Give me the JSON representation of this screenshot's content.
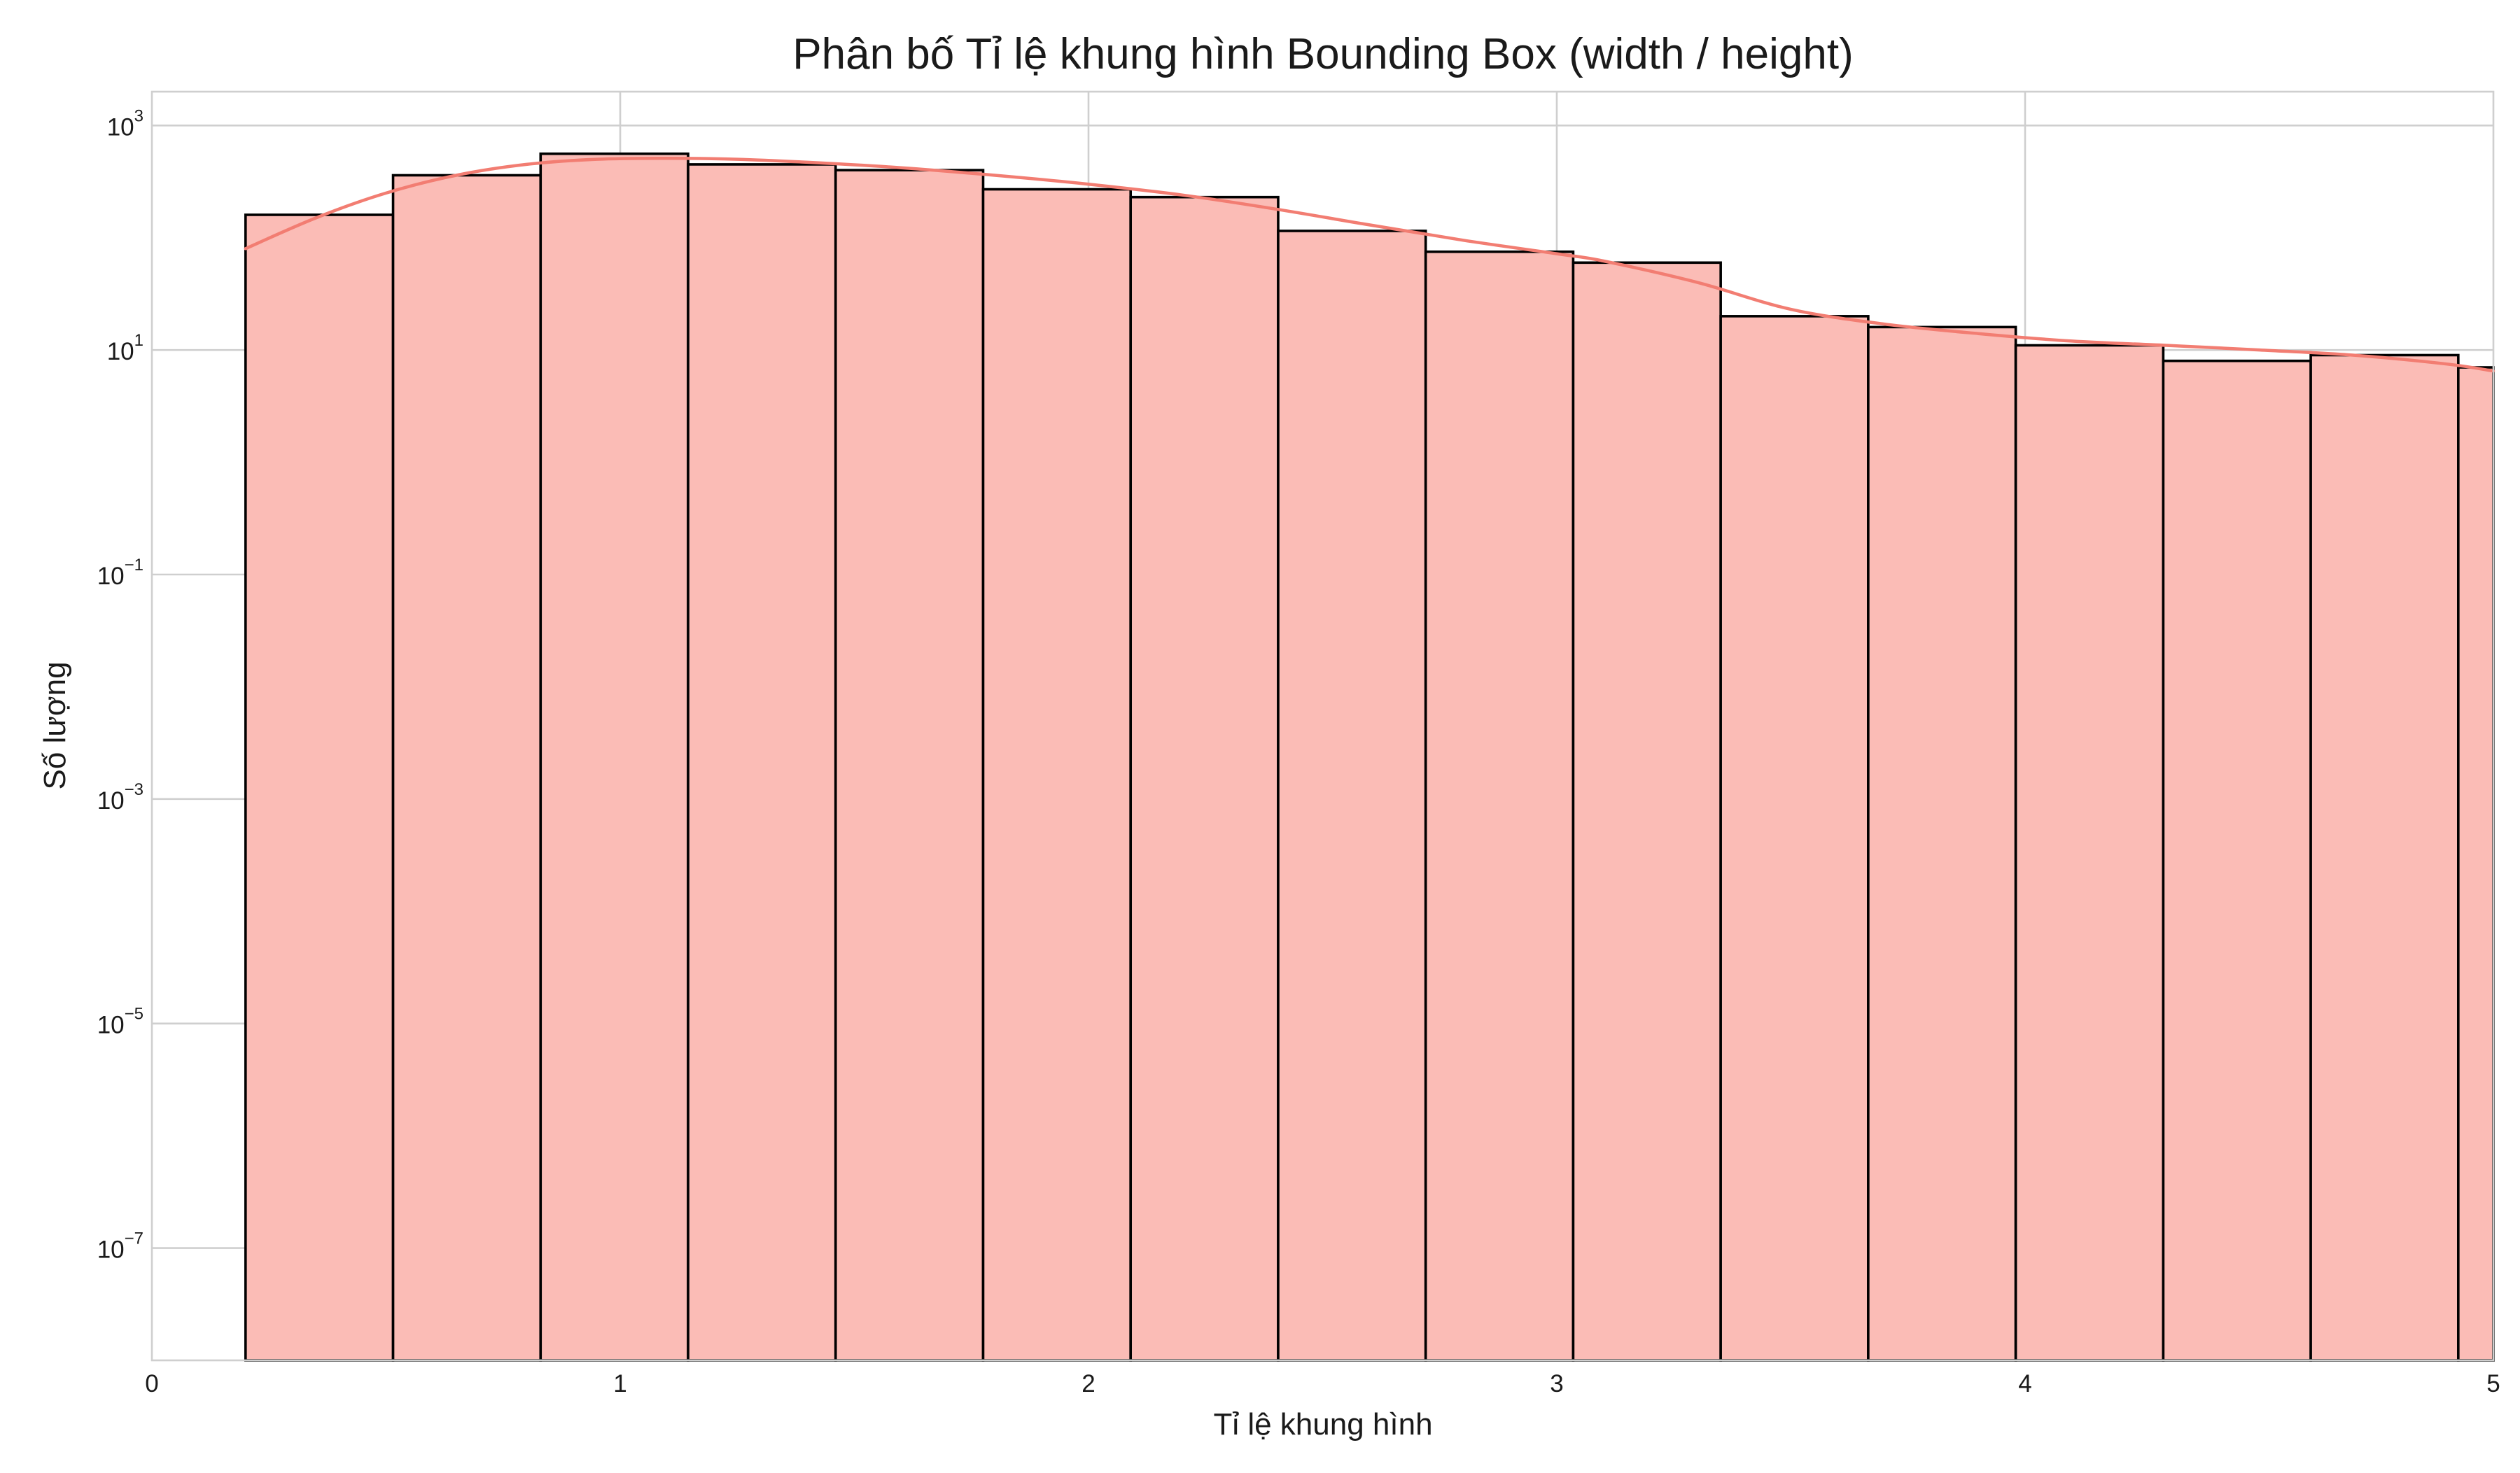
{
  "chart_data": {
    "type": "bar",
    "subtype": "histogram-with-kde",
    "title": "Phân bố Tỉ lệ khung hình Bounding Box (width / height)",
    "xlabel": "Tỉ lệ khung hình",
    "ylabel": "Số lượng",
    "xlim": [
      0,
      5
    ],
    "ylim": [
      1e-08,
      2000
    ],
    "yscale": "log",
    "grid": true,
    "legend": "none",
    "x_ticks": [
      "0",
      "1",
      "2",
      "3",
      "4",
      "5"
    ],
    "y_ticks": [
      {
        "base": "10",
        "exp": "3",
        "value": 1000
      },
      {
        "base": "10",
        "exp": "1",
        "value": 10
      },
      {
        "base": "10",
        "exp": "−1",
        "value": 0.1
      },
      {
        "base": "10",
        "exp": "−3",
        "value": 0.001
      },
      {
        "base": "10",
        "exp": "−5",
        "value": 1e-05
      },
      {
        "base": "10",
        "exp": "−7",
        "value": 1e-07
      }
    ],
    "bin_edges": [
      0.2,
      0.515,
      0.83,
      1.145,
      1.46,
      1.775,
      2.09,
      2.405,
      2.72,
      3.035,
      3.35,
      3.665,
      3.98,
      4.295,
      4.61,
      4.925,
      5.24
    ],
    "counts": [
      160,
      360,
      560,
      450,
      400,
      270,
      230,
      115,
      75,
      60,
      20,
      16,
      11,
      8,
      9,
      7
    ],
    "kde": {
      "x": [
        0.2,
        0.35,
        0.5,
        0.65,
        0.8,
        0.95,
        1.1,
        1.25,
        1.4,
        1.6,
        1.8,
        2.0,
        2.2,
        2.4,
        2.6,
        2.8,
        3.0,
        3.1,
        3.3,
        3.5,
        3.7,
        3.9,
        4.1,
        4.3,
        4.5,
        4.7,
        4.9,
        5.0
      ],
      "y": [
        80,
        150,
        250,
        360,
        450,
        500,
        510,
        500,
        470,
        420,
        360,
        300,
        240,
        180,
        130,
        95,
        72,
        62,
        40,
        23,
        17,
        14,
        12,
        11,
        10,
        9,
        7.5,
        6.5
      ]
    },
    "colors": {
      "bar_fill": "#fbbcb6",
      "bar_edge": "#000000",
      "kde_line": "#f27d72",
      "grid": "#cfcfcf"
    }
  }
}
